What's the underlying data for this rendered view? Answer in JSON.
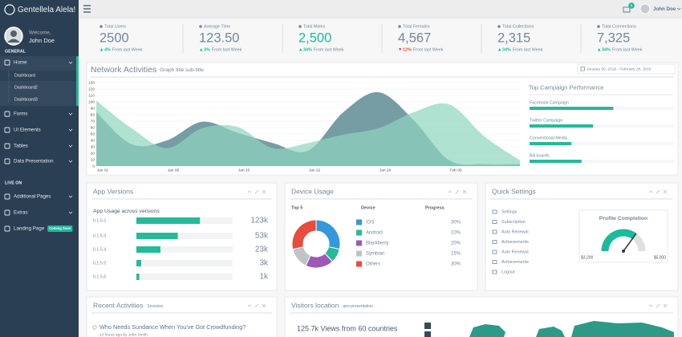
{
  "sidebar": {
    "brand": "Gentellela Alela!",
    "welcome": "Welcome,",
    "user": "John Doe",
    "section_general": "GENERAL",
    "menu": [
      {
        "label": "Home",
        "children": [
          "Dashboard",
          "Dashboard2",
          "Dashboard3"
        ]
      },
      {
        "label": "Forms"
      },
      {
        "label": "UI Elements"
      },
      {
        "label": "Tables"
      },
      {
        "label": "Data Presentation"
      }
    ],
    "section_live": "LIVE ON",
    "menu_live": [
      {
        "label": "Additional Pages"
      },
      {
        "label": "Extras"
      },
      {
        "label": "Landing Page",
        "badge": "Coming Soon"
      }
    ]
  },
  "topbar": {
    "notifications": "6",
    "user": "John Doe"
  },
  "stats": [
    {
      "label": "Total Users",
      "value": "2500",
      "change": "4%",
      "note": "From last Week",
      "trend": "up"
    },
    {
      "label": "Average Time",
      "value": "123.50",
      "change": "3%",
      "note": "From last Week",
      "trend": "up"
    },
    {
      "label": "Total Males",
      "value": "2,500",
      "change": "34%",
      "note": "From last Week",
      "trend": "up",
      "value_color": "#1abb9c"
    },
    {
      "label": "Total Females",
      "value": "4,567",
      "change": "12%",
      "note": "From last Week",
      "trend": "down"
    },
    {
      "label": "Total Collections",
      "value": "2,315",
      "change": "34%",
      "note": "From last Week",
      "trend": "up"
    },
    {
      "label": "Total Connections",
      "value": "7,325",
      "change": "34%",
      "note": "From last Week",
      "trend": "up"
    }
  ],
  "network": {
    "title": "Network Activities",
    "subtitle": "Graph title sub-title",
    "date_range": "January 30, 2016 - February 28, 2016",
    "chart": {
      "type": "area",
      "ylim": [
        0,
        130
      ],
      "yticks": [
        0,
        10,
        20,
        30,
        40,
        50,
        60,
        70,
        80,
        90,
        100,
        110,
        120,
        130
      ],
      "xticks": [
        "Jan 01",
        "Jan 08",
        "Jan 15",
        "Jan 22",
        "Jan 29",
        "Feb 05"
      ],
      "grid": true,
      "series": [
        {
          "color": "#5e8b94",
          "values": [
            84,
            34,
            40,
            69,
            52,
            36,
            24,
            84,
            115,
            71,
            9,
            3,
            3
          ]
        },
        {
          "color": "#8fd6bf",
          "values": [
            102,
            59,
            28,
            59,
            61,
            28,
            36,
            49,
            59,
            84,
            96,
            46,
            9
          ]
        }
      ]
    },
    "campaign": {
      "title": "Top Campaign Performance",
      "color": "#26b99a",
      "items": [
        {
          "label": "Facebook Campaign",
          "progress": 58
        },
        {
          "label": "Twitter Campaign",
          "progress": 44
        },
        {
          "label": "Conventional Media",
          "progress": 29
        },
        {
          "label": "Bill boards",
          "progress": 36
        }
      ]
    }
  },
  "app_versions": {
    "title": "App Versions",
    "subtitle": "App Usage across versions",
    "color": "#26b99a",
    "rows": [
      {
        "version": "0.1.5.2",
        "progress": 66,
        "count": "123k"
      },
      {
        "version": "0.1.5.3",
        "progress": 43,
        "count": "53k"
      },
      {
        "version": "0.1.5.4",
        "progress": 25,
        "count": "23k"
      },
      {
        "version": "0.1.5.5",
        "progress": 5,
        "count": "3k"
      },
      {
        "version": "0.1.5.6",
        "progress": 3,
        "count": "1k"
      }
    ]
  },
  "device_usage": {
    "title": "Device Usage",
    "headers": [
      "Top 5",
      "Device",
      "Progress"
    ],
    "rows": [
      {
        "device": "IOS",
        "color": "#3498db",
        "value": 30,
        "label": "30%"
      },
      {
        "device": "Android",
        "color": "#26b99a",
        "value": 10,
        "label": "10%"
      },
      {
        "device": "Blackberry",
        "color": "#9b59b6",
        "value": 20,
        "label": "20%"
      },
      {
        "device": "Symbian",
        "color": "#bdc3c7",
        "value": 15,
        "label": "15%"
      },
      {
        "device": "Others",
        "color": "#e74c3c",
        "value": 30,
        "label": "30%"
      }
    ]
  },
  "quick_settings": {
    "title": "Quick Settings",
    "items": [
      "Settings",
      "Subscription",
      "Auto Renewal",
      "Achievements",
      "Auto Renewal",
      "Achievements",
      "Logout"
    ],
    "profile": {
      "title": "Profile Completion",
      "min": "$3,200",
      "max": "$5,000"
    }
  },
  "recent_activities": {
    "title": "Recent Activities",
    "subtitle": "Sessions",
    "items": [
      {
        "title": "Who Needs Sundance When You've Got Crowdfunding?",
        "meta": "13 hours ago by John Smith"
      }
    ]
  },
  "visitors": {
    "title": "Visitors location",
    "subtitle": "geo-presentation",
    "headline": "125.7k Views from 60 countries"
  }
}
